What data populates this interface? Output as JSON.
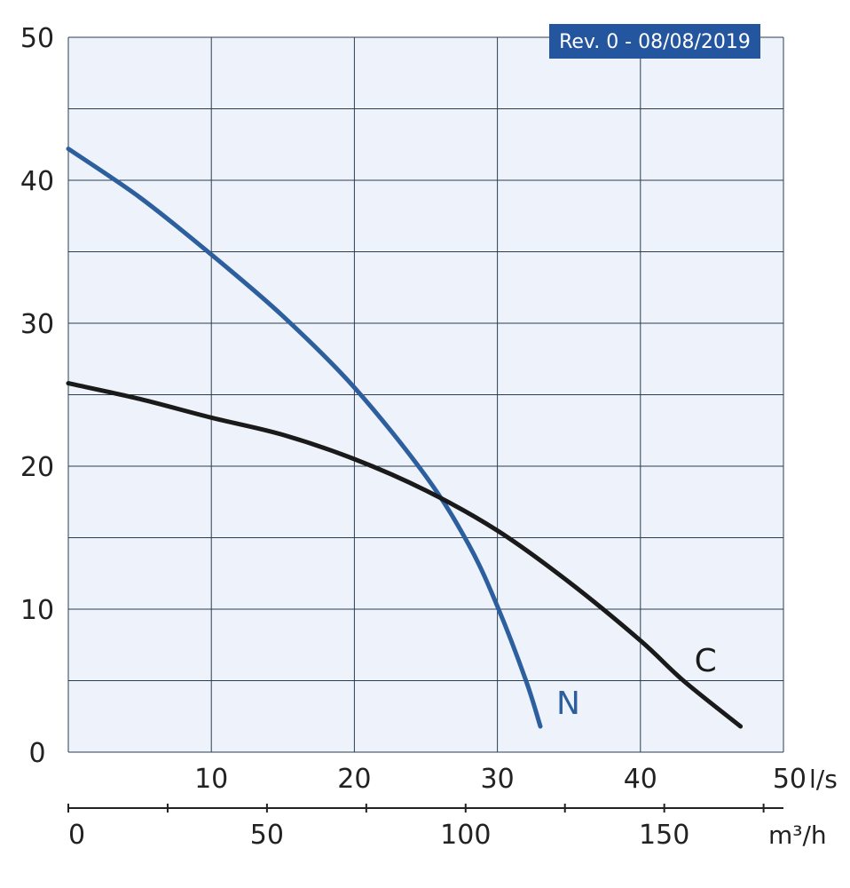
{
  "chart_data": {
    "type": "line",
    "title": "",
    "xlabel": "",
    "ylabel": "",
    "revision_badge": "Rev. 0 - 08/08/2019",
    "x_unit": "l/s",
    "secondary_x_unit": "m³/h",
    "xlim": [
      0,
      50
    ],
    "ylim": [
      0,
      50
    ],
    "x_ticks": [
      "10",
      "20",
      "30",
      "40",
      "50"
    ],
    "y_ticks": [
      "0",
      "10",
      "20",
      "30",
      "40",
      "50"
    ],
    "secondary_x_ticks": [
      "0",
      "50",
      "100",
      "150"
    ],
    "secondary_x_values": [
      0,
      50,
      100,
      150
    ],
    "secondary_x_lim": [
      0,
      180
    ],
    "secondary_minor_step": 25,
    "grid": true,
    "series": [
      {
        "name": "N",
        "color": "#2d5f9e",
        "x": [
          0,
          5,
          10,
          15,
          20,
          25,
          28,
          30,
          32,
          33
        ],
        "y": [
          42.2,
          38.8,
          34.8,
          30.5,
          25.5,
          19.3,
          14.5,
          10.2,
          5.0,
          1.8
        ]
      },
      {
        "name": "C",
        "color": "#1a1a1a",
        "x": [
          0,
          5,
          10,
          15,
          20,
          25,
          30,
          35,
          40,
          43,
          47
        ],
        "y": [
          25.8,
          24.7,
          23.4,
          22.2,
          20.5,
          18.3,
          15.5,
          11.9,
          7.8,
          5.0,
          1.8
        ]
      }
    ]
  }
}
